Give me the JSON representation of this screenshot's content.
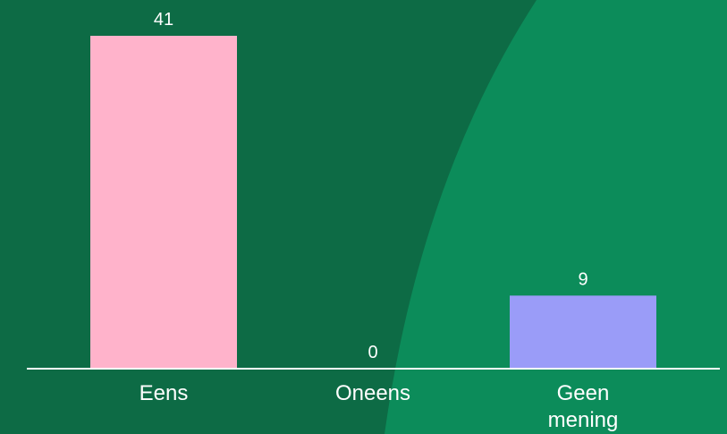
{
  "theme": {
    "background": "#0d6b45",
    "background_arc": "#0c8c5a",
    "axis_color": "#ffffff",
    "text_color": "#ffffff"
  },
  "chart_data": {
    "type": "bar",
    "categories": [
      "Eens",
      "Oneens",
      "Geen mening"
    ],
    "category_lines": [
      [
        "Eens"
      ],
      [
        "Oneens"
      ],
      [
        "Geen",
        "mening"
      ]
    ],
    "values": [
      41,
      0,
      9
    ],
    "value_labels": [
      "41",
      "0",
      "9"
    ],
    "colors": [
      "#ffb3cb",
      "#0c8c5a",
      "#9a9cf8"
    ],
    "ylim": [
      0,
      41
    ],
    "grid": false,
    "legend": "none",
    "title": "",
    "xlabel": "",
    "ylabel": ""
  }
}
